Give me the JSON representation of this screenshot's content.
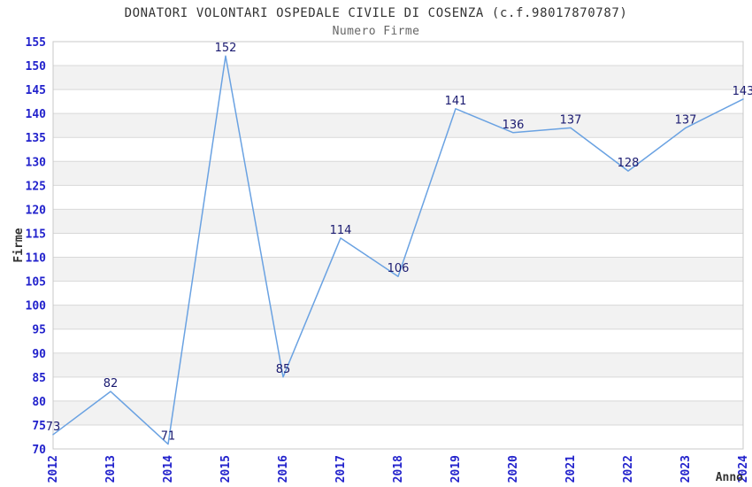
{
  "chart_data": {
    "type": "line",
    "title": "DONATORI VOLONTARI OSPEDALE CIVILE DI COSENZA (c.f.98017870787)",
    "subtitle": "Numero Firme",
    "xlabel": "Anno",
    "ylabel": "Firme",
    "categories": [
      "2012",
      "2013",
      "2014",
      "2015",
      "2016",
      "2017",
      "2018",
      "2019",
      "2020",
      "2021",
      "2022",
      "2023",
      "2024"
    ],
    "values": [
      73,
      82,
      71,
      152,
      85,
      114,
      106,
      141,
      136,
      137,
      128,
      137,
      143
    ],
    "ylim": [
      70,
      155
    ],
    "ytick_step": 5,
    "grid": "horizontal-bands-alternating",
    "legend": "none",
    "colors": {
      "line": "#6aa2e2",
      "tick_label": "#2222cc",
      "data_label": "#1a1a70",
      "title": "#333333",
      "subtitle": "#666666",
      "axis_label": "#333333",
      "band": "#f2f2f2",
      "gridline": "#d8d8d8",
      "border": "#c8c8c8",
      "background": "#ffffff"
    }
  }
}
